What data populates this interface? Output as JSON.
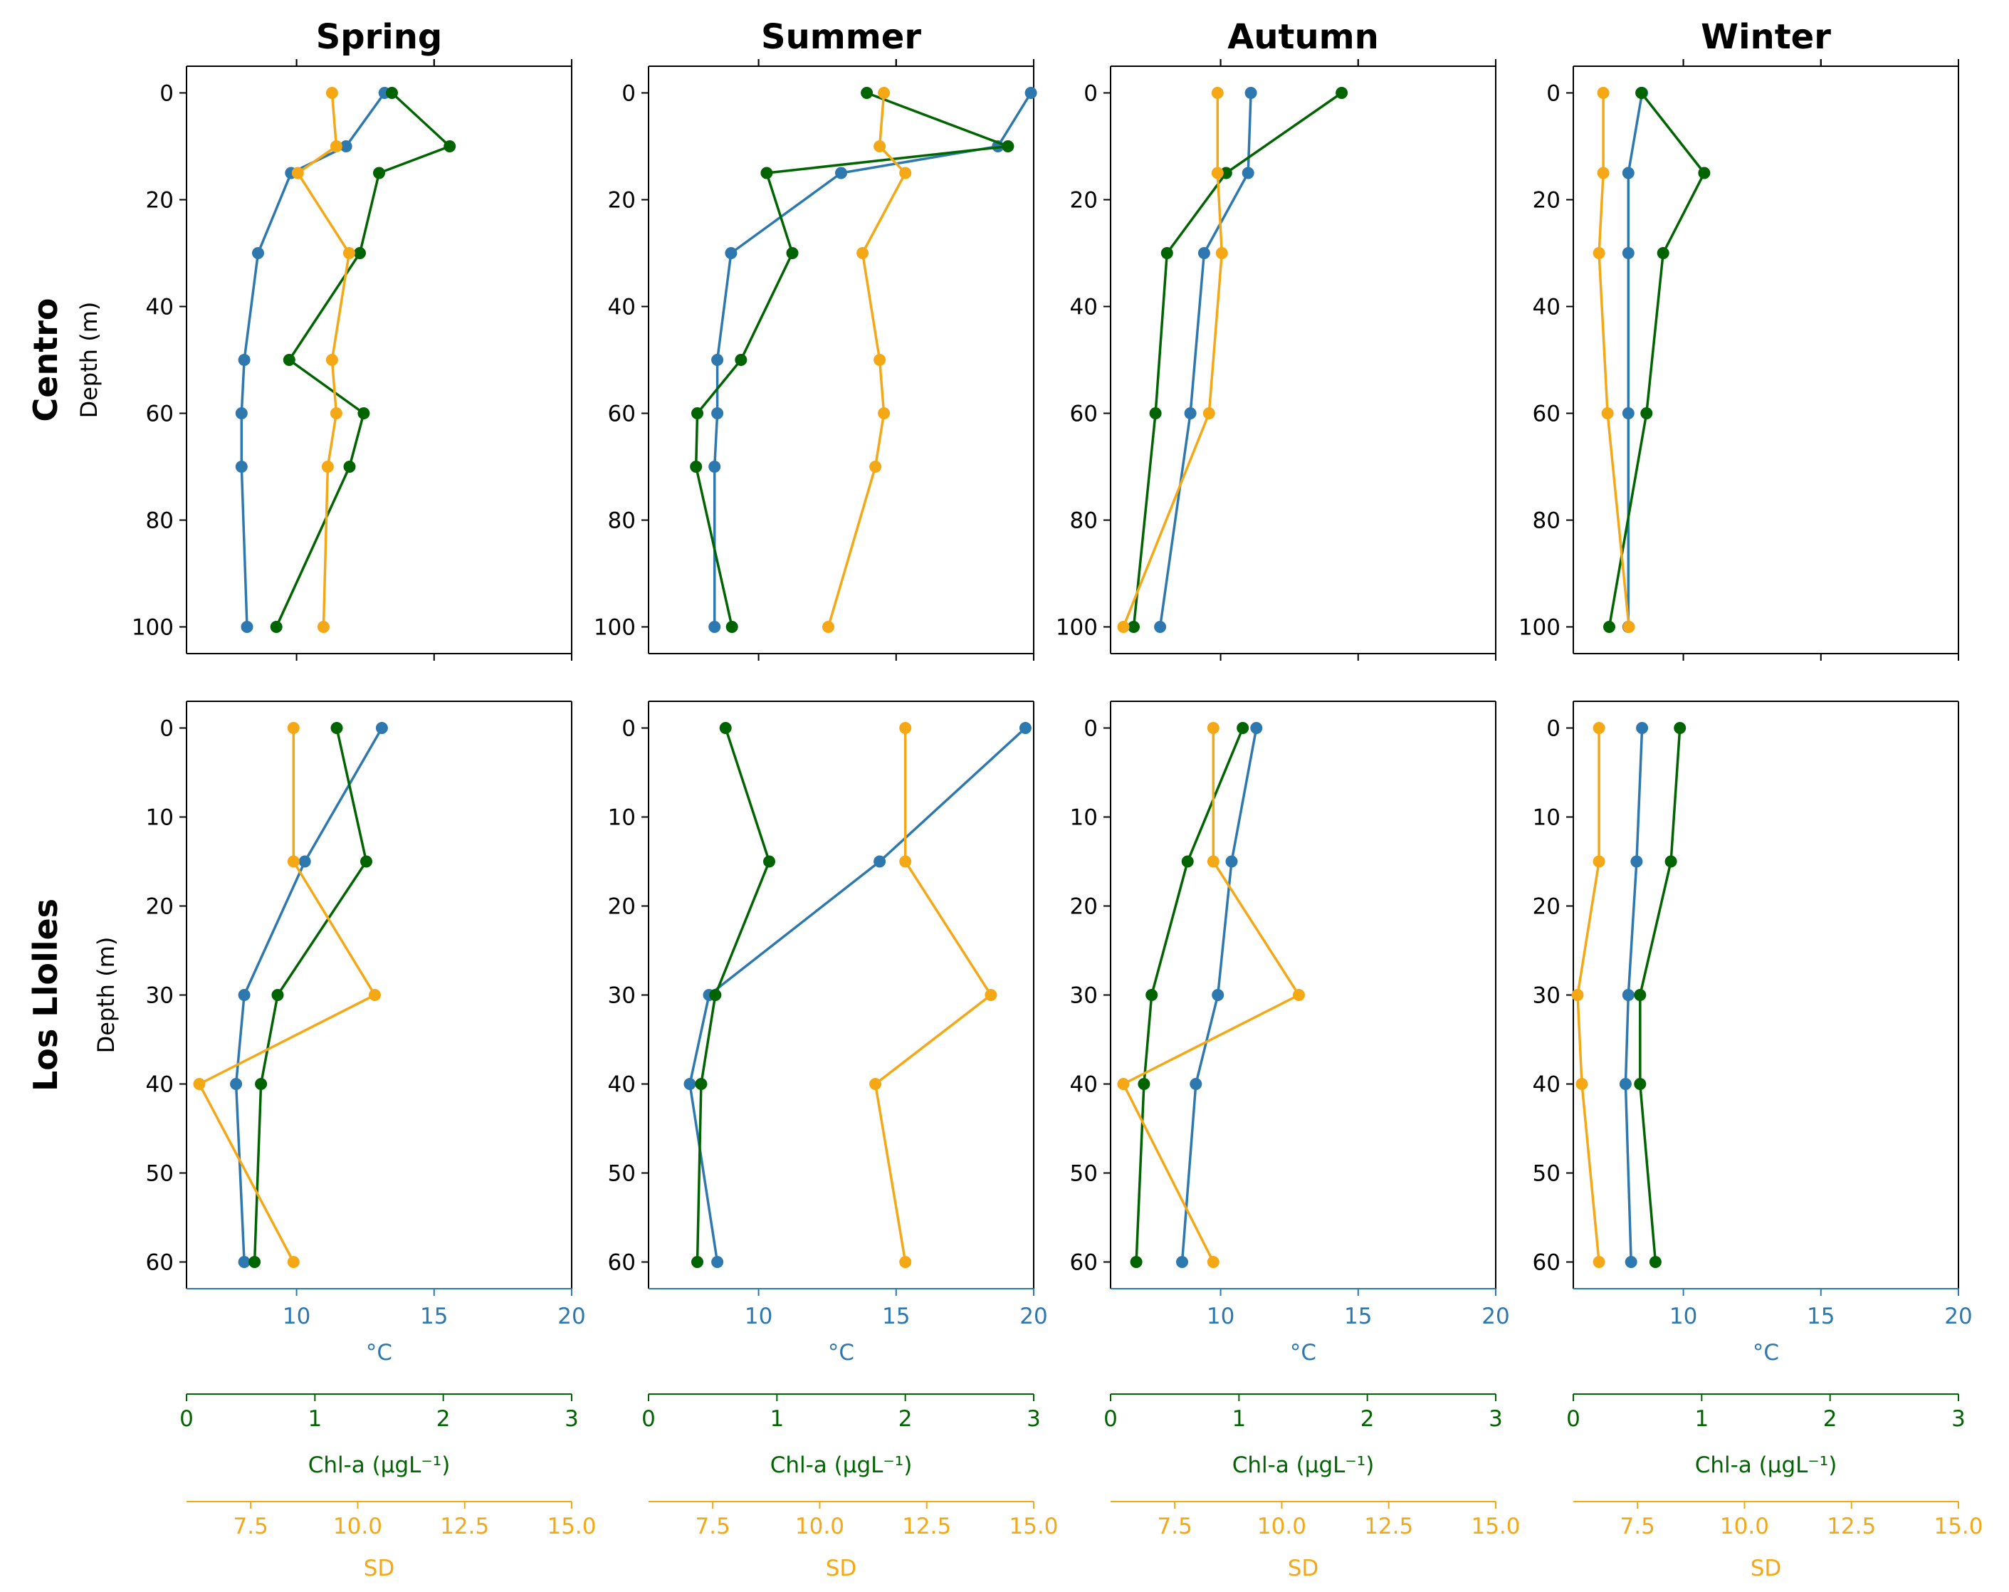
{
  "figure": {
    "seasons": [
      "Spring",
      "Summer",
      "Autumn",
      "Winter"
    ],
    "sites": [
      "Centro",
      "Los Llolles"
    ],
    "depth_label": "Depth (m)",
    "colors": {
      "temperature": "#2e78b0",
      "chl": "#006400",
      "sd": "#f5a816",
      "axis": "#000000"
    }
  },
  "chart_data": [
    {
      "type": "line",
      "row": 0,
      "col": 0,
      "season": "Spring",
      "site": "Centro",
      "ylabel": "Depth (m)",
      "ylim": [
        105,
        -5
      ],
      "yticks": [
        0,
        20,
        40,
        60,
        80,
        100
      ],
      "series": [
        {
          "name": "°C",
          "axis": "temp",
          "color": "#2e78b0",
          "depth": [
            0,
            10,
            15,
            30,
            50,
            60,
            70,
            100
          ],
          "values": [
            13.2,
            11.8,
            9.8,
            8.6,
            8.1,
            8.0,
            8.0,
            8.2
          ]
        },
        {
          "name": "Chl-a",
          "axis": "chl",
          "color": "#006400",
          "depth": [
            0,
            10,
            15,
            30,
            50,
            60,
            70,
            100
          ],
          "values": [
            1.6,
            2.05,
            1.5,
            1.35,
            0.8,
            1.38,
            1.27,
            0.7
          ]
        },
        {
          "name": "SD",
          "axis": "sd",
          "color": "#f5a816",
          "depth": [
            0,
            10,
            15,
            30,
            50,
            60,
            70,
            100
          ],
          "values": [
            9.4,
            9.5,
            8.6,
            9.8,
            9.4,
            9.5,
            9.3,
            9.2
          ]
        }
      ]
    },
    {
      "type": "line",
      "row": 0,
      "col": 1,
      "season": "Summer",
      "site": "Centro",
      "ylabel": "",
      "ylim": [
        105,
        -5
      ],
      "yticks": [
        0,
        20,
        40,
        60,
        80,
        100
      ],
      "series": [
        {
          "name": "°C",
          "axis": "temp",
          "color": "#2e78b0",
          "depth": [
            0,
            10,
            15,
            30,
            50,
            60,
            70,
            100
          ],
          "values": [
            19.9,
            18.7,
            13.0,
            9.0,
            8.5,
            8.5,
            8.4,
            8.4
          ]
        },
        {
          "name": "Chl-a",
          "axis": "chl",
          "color": "#006400",
          "depth": [
            0,
            10,
            15,
            30,
            50,
            60,
            70,
            100
          ],
          "values": [
            1.7,
            2.8,
            0.92,
            1.12,
            0.72,
            0.38,
            0.37,
            0.65
          ]
        },
        {
          "name": "SD",
          "axis": "sd",
          "color": "#f5a816",
          "depth": [
            0,
            10,
            15,
            30,
            50,
            60,
            70,
            100
          ],
          "values": [
            11.5,
            11.4,
            12.0,
            11.0,
            11.4,
            11.5,
            11.3,
            10.2
          ]
        }
      ]
    },
    {
      "type": "line",
      "row": 0,
      "col": 2,
      "season": "Autumn",
      "site": "Centro",
      "ylabel": "",
      "ylim": [
        105,
        -5
      ],
      "yticks": [
        0,
        20,
        40,
        60,
        80,
        100
      ],
      "series": [
        {
          "name": "°C",
          "axis": "temp",
          "color": "#2e78b0",
          "depth": [
            0,
            15,
            30,
            60,
            100
          ],
          "values": [
            11.1,
            11.0,
            9.4,
            8.9,
            7.8
          ]
        },
        {
          "name": "Chl-a",
          "axis": "chl",
          "color": "#006400",
          "depth": [
            0,
            15,
            30,
            60,
            100
          ],
          "values": [
            1.8,
            0.9,
            0.44,
            0.35,
            0.18
          ]
        },
        {
          "name": "SD",
          "axis": "sd",
          "color": "#f5a816",
          "depth": [
            0,
            15,
            30,
            60,
            100
          ],
          "values": [
            8.5,
            8.5,
            8.6,
            8.3,
            6.3
          ]
        }
      ]
    },
    {
      "type": "line",
      "row": 0,
      "col": 3,
      "season": "Winter",
      "site": "Centro",
      "ylabel": "",
      "ylim": [
        105,
        -5
      ],
      "yticks": [
        0,
        20,
        40,
        60,
        80,
        100
      ],
      "series": [
        {
          "name": "°C",
          "axis": "temp",
          "color": "#2e78b0",
          "depth": [
            0,
            15,
            30,
            60,
            100
          ],
          "values": [
            8.5,
            8.0,
            8.0,
            8.0,
            8.0
          ]
        },
        {
          "name": "Chl-a",
          "axis": "chl",
          "color": "#006400",
          "depth": [
            0,
            15,
            30,
            60,
            100
          ],
          "values": [
            0.53,
            1.02,
            0.7,
            0.57,
            0.28
          ]
        },
        {
          "name": "SD",
          "axis": "sd",
          "color": "#f5a816",
          "depth": [
            0,
            15,
            30,
            60,
            100
          ],
          "values": [
            6.7,
            6.7,
            6.6,
            6.8,
            7.3
          ]
        }
      ]
    },
    {
      "type": "line",
      "row": 1,
      "col": 0,
      "season": "Spring",
      "site": "Los Llolles",
      "ylabel": "Depth (m)",
      "ylim": [
        63,
        -3
      ],
      "yticks": [
        0,
        10,
        20,
        30,
        40,
        50,
        60
      ],
      "series": [
        {
          "name": "°C",
          "axis": "temp",
          "color": "#2e78b0",
          "depth": [
            0,
            15,
            30,
            40,
            60
          ],
          "values": [
            13.1,
            10.3,
            8.1,
            7.8,
            8.1
          ]
        },
        {
          "name": "Chl-a",
          "axis": "chl",
          "color": "#006400",
          "depth": [
            0,
            15,
            30,
            40,
            60
          ],
          "values": [
            1.17,
            1.4,
            0.71,
            0.58,
            0.53
          ]
        },
        {
          "name": "SD",
          "axis": "sd",
          "color": "#f5a816",
          "depth": [
            0,
            15,
            30,
            40,
            60
          ],
          "values": [
            8.5,
            8.5,
            10.4,
            6.3,
            8.5
          ]
        }
      ]
    },
    {
      "type": "line",
      "row": 1,
      "col": 1,
      "season": "Summer",
      "site": "Los Llolles",
      "ylabel": "",
      "ylim": [
        63,
        -3
      ],
      "yticks": [
        0,
        10,
        20,
        30,
        40,
        50,
        60
      ],
      "series": [
        {
          "name": "°C",
          "axis": "temp",
          "color": "#2e78b0",
          "depth": [
            0,
            15,
            30,
            40,
            60
          ],
          "values": [
            19.7,
            14.4,
            8.2,
            7.5,
            8.5
          ]
        },
        {
          "name": "Chl-a",
          "axis": "chl",
          "color": "#006400",
          "depth": [
            0,
            15,
            30,
            40,
            60
          ],
          "values": [
            0.6,
            0.94,
            0.52,
            0.41,
            0.38
          ]
        },
        {
          "name": "SD",
          "axis": "sd",
          "color": "#f5a816",
          "depth": [
            0,
            15,
            30,
            40,
            60
          ],
          "values": [
            12.0,
            12.0,
            14.0,
            11.3,
            12.0
          ]
        }
      ]
    },
    {
      "type": "line",
      "row": 1,
      "col": 2,
      "season": "Autumn",
      "site": "Los Llolles",
      "ylabel": "",
      "ylim": [
        63,
        -3
      ],
      "yticks": [
        0,
        10,
        20,
        30,
        40,
        50,
        60
      ],
      "series": [
        {
          "name": "°C",
          "axis": "temp",
          "color": "#2e78b0",
          "depth": [
            0,
            15,
            30,
            40,
            60
          ],
          "values": [
            11.3,
            10.4,
            9.9,
            9.1,
            8.6
          ]
        },
        {
          "name": "Chl-a",
          "axis": "chl",
          "color": "#006400",
          "depth": [
            0,
            15,
            30,
            40,
            60
          ],
          "values": [
            1.03,
            0.6,
            0.32,
            0.26,
            0.2
          ]
        },
        {
          "name": "SD",
          "axis": "sd",
          "color": "#f5a816",
          "depth": [
            0,
            15,
            30,
            40,
            60
          ],
          "values": [
            8.4,
            8.4,
            10.4,
            6.3,
            8.4
          ]
        }
      ]
    },
    {
      "type": "line",
      "row": 1,
      "col": 3,
      "season": "Winter",
      "site": "Los Llolles",
      "ylabel": "",
      "ylim": [
        63,
        -3
      ],
      "yticks": [
        0,
        10,
        20,
        30,
        40,
        50,
        60
      ],
      "series": [
        {
          "name": "°C",
          "axis": "temp",
          "color": "#2e78b0",
          "depth": [
            0,
            15,
            30,
            40,
            60
          ],
          "values": [
            8.5,
            8.3,
            8.0,
            7.9,
            8.1
          ]
        },
        {
          "name": "Chl-a",
          "axis": "chl",
          "color": "#006400",
          "depth": [
            0,
            15,
            30,
            40,
            60
          ],
          "values": [
            0.83,
            0.76,
            0.52,
            0.52,
            0.64
          ]
        },
        {
          "name": "SD",
          "axis": "sd",
          "color": "#f5a816",
          "depth": [
            0,
            15,
            30,
            40,
            60
          ],
          "values": [
            6.6,
            6.6,
            6.1,
            6.2,
            6.6
          ]
        }
      ]
    }
  ],
  "axes": {
    "temp": {
      "label": "°C",
      "range": [
        6,
        20
      ],
      "ticks": [
        10,
        15,
        20
      ],
      "tick_labels": [
        "10",
        "15",
        "20"
      ],
      "color": "#2e78b0"
    },
    "chl": {
      "label": "Chl-a (μgL⁻¹)",
      "range": [
        0,
        3
      ],
      "ticks": [
        0,
        1,
        2,
        3
      ],
      "tick_labels": [
        "0",
        "1",
        "2",
        "3"
      ],
      "color": "#006400"
    },
    "sd": {
      "label": "SD",
      "range": [
        6,
        15
      ],
      "ticks": [
        7.5,
        10,
        12.5,
        15
      ],
      "tick_labels": [
        "7.5",
        "10.0",
        "12.5",
        "15.0"
      ],
      "color": "#f5a816"
    }
  }
}
